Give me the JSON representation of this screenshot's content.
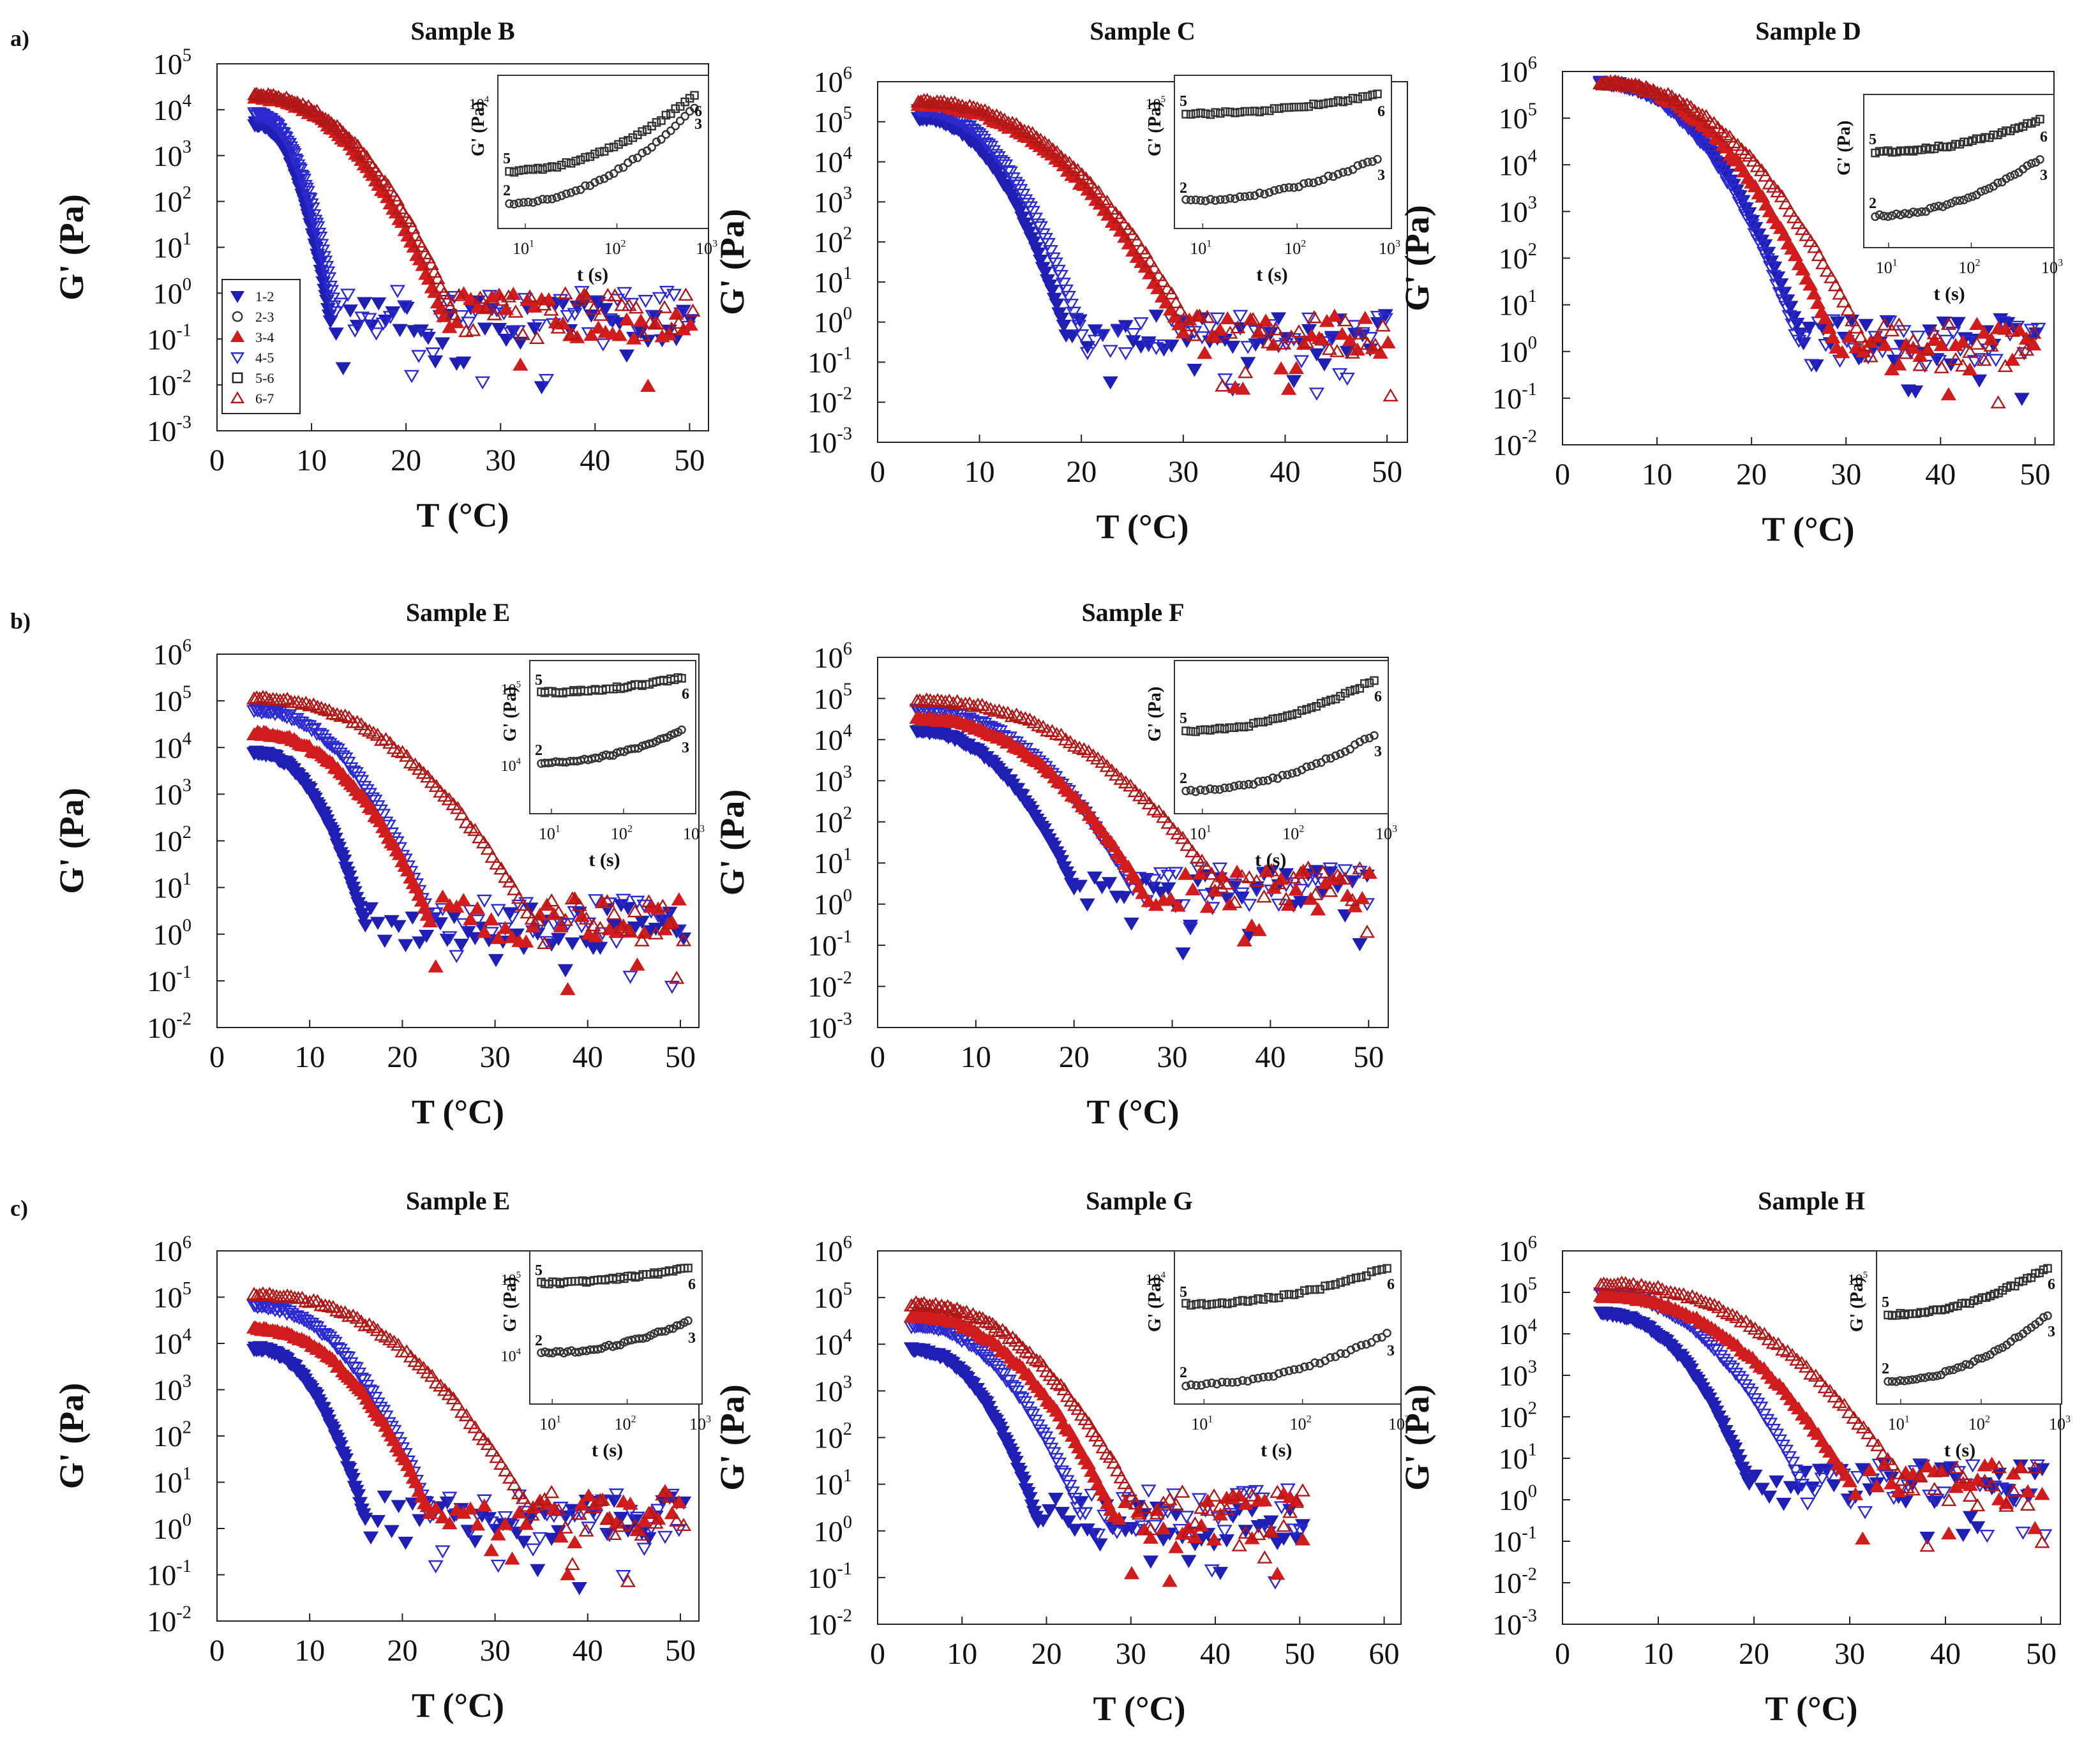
{
  "figure": {
    "row_labels": [
      "a)",
      "b)",
      "c)"
    ],
    "series_legend": [
      {
        "label": "1-2",
        "color": "#1f1fb4",
        "marker": "triangle-down",
        "fill": true
      },
      {
        "label": "2-3",
        "color": "#333333",
        "marker": "circle",
        "fill": false
      },
      {
        "label": "3-4",
        "color": "#d01c1c",
        "marker": "triangle-up",
        "fill": true
      },
      {
        "label": "4-5",
        "color": "#2a2ad0",
        "marker": "triangle-down",
        "fill": false
      },
      {
        "label": "5-6",
        "color": "#222222",
        "marker": "square",
        "fill": false
      },
      {
        "label": "6-7",
        "color": "#b01818",
        "marker": "triangle-up",
        "fill": false
      }
    ],
    "inset_labels": {
      "xlabel": "t (s)",
      "ylabel": "G' (Pa)",
      "curve_start_upper": "5",
      "curve_start_lower": "2",
      "curve_end_upper": "6",
      "curve_end_lower": "3"
    }
  },
  "chart_data": [
    {
      "type": "scatter",
      "title": "Sample B",
      "xlabel": "T (°C)",
      "ylabel": "G' (Pa)",
      "xlim": [
        0,
        52
      ],
      "xticks": [
        0,
        10,
        20,
        30,
        40,
        50
      ],
      "ylim_exp": [
        -3,
        5
      ],
      "ytick_labels": [
        "10-3",
        "10-2",
        "10-1",
        "100",
        "101",
        "102",
        "103",
        "104",
        "105"
      ],
      "curves": [
        {
          "series": "1-2",
          "T_start": 4,
          "logG_start": 3.7,
          "T_drop": 12,
          "logG_plateau": -0.6
        },
        {
          "series": "4-5",
          "T_start": 4,
          "logG_start": 3.9,
          "T_drop": 12.5,
          "logG_plateau": -0.4
        },
        {
          "series": "3-4",
          "T_start": 4,
          "logG_start": 4.25,
          "T_drop": 24,
          "logG_plateau": -0.5
        },
        {
          "series": "6-7",
          "T_start": 4,
          "logG_start": 4.3,
          "T_drop": 25,
          "logG_plateau": -0.5
        }
      ],
      "legend": true,
      "inset": {
        "xticks": [
          "101",
          "102",
          "103"
        ],
        "yticks": [
          "104"
        ],
        "upper_start": 0.35,
        "upper_end": 0.95,
        "lower_start": 0.1,
        "lower_end": 0.85
      }
    },
    {
      "type": "scatter",
      "title": "Sample C",
      "xlabel": "T (°C)",
      "ylabel": "G' (Pa)",
      "xlim": [
        0,
        52
      ],
      "xticks": [
        0,
        10,
        20,
        30,
        40,
        50
      ],
      "ylim_exp": [
        -3,
        6
      ],
      "ytick_labels": [
        "10-3",
        "10-2",
        "10-1",
        "100",
        "101",
        "102",
        "103",
        "104",
        "105",
        "106"
      ],
      "curves": [
        {
          "series": "1-2",
          "T_start": 4,
          "logG_start": 5.1,
          "T_drop": 18.5,
          "logG_plateau": -0.3
        },
        {
          "series": "4-5",
          "T_start": 4,
          "logG_start": 5.3,
          "T_drop": 20,
          "logG_plateau": -0.3
        },
        {
          "series": "3-4",
          "T_start": 4,
          "logG_start": 5.4,
          "T_drop": 30,
          "logG_plateau": -0.3
        },
        {
          "series": "6-7",
          "T_start": 4,
          "logG_start": 5.5,
          "T_drop": 31,
          "logG_plateau": -0.3
        }
      ],
      "legend": false,
      "inset": {
        "xticks": [
          "101",
          "102",
          "103"
        ],
        "yticks": [
          "105"
        ],
        "upper_start": 0.8,
        "upper_end": 0.95,
        "lower_start": 0.12,
        "lower_end": 0.45
      }
    },
    {
      "type": "scatter",
      "title": "Sample D",
      "xlabel": "T (°C)",
      "ylabel": "G' (Pa)",
      "xlim": [
        0,
        52
      ],
      "xticks": [
        0,
        10,
        20,
        30,
        40,
        50
      ],
      "ylim_exp": [
        -2,
        6
      ],
      "ytick_labels": [
        "10-2",
        "10-1",
        "100",
        "101",
        "102",
        "103",
        "104",
        "105",
        "106"
      ],
      "curves": [
        {
          "series": "1-2",
          "T_start": 4,
          "logG_start": 5.75,
          "T_drop": 25.5,
          "logG_plateau": 0.2
        },
        {
          "series": "4-5",
          "T_start": 4,
          "logG_start": 5.75,
          "T_drop": 25,
          "logG_plateau": 0.2
        },
        {
          "series": "3-4",
          "T_start": 4,
          "logG_start": 5.75,
          "T_drop": 29,
          "logG_plateau": 0.1
        },
        {
          "series": "6-7",
          "T_start": 4,
          "logG_start": 5.75,
          "T_drop": 32,
          "logG_plateau": 0.1
        }
      ],
      "legend": false,
      "inset": {
        "xticks": [
          "101",
          "102",
          "103"
        ],
        "yticks": [],
        "upper_start": 0.65,
        "upper_end": 0.9,
        "lower_start": 0.15,
        "lower_end": 0.6
      }
    },
    {
      "type": "scatter",
      "title": "Sample E",
      "xlabel": "T (°C)",
      "ylabel": "G' (Pa)",
      "xlim": [
        0,
        52
      ],
      "xticks": [
        0,
        10,
        20,
        30,
        40,
        50
      ],
      "ylim_exp": [
        -2,
        6
      ],
      "ytick_labels": [
        "10-2",
        "10-1",
        "100",
        "101",
        "102",
        "103",
        "104",
        "105",
        "106"
      ],
      "curves": [
        {
          "series": "1-2",
          "T_start": 4,
          "logG_start": 3.9,
          "T_drop": 16,
          "logG_plateau": 0.2
        },
        {
          "series": "4-5",
          "T_start": 4,
          "logG_start": 4.8,
          "T_drop": 23,
          "logG_plateau": 0.3
        },
        {
          "series": "3-4",
          "T_start": 4,
          "logG_start": 4.3,
          "T_drop": 23,
          "logG_plateau": 0.3
        },
        {
          "series": "6-7",
          "T_start": 4,
          "logG_start": 5.05,
          "T_drop": 34,
          "logG_plateau": 0.3
        }
      ],
      "legend": false,
      "inset": {
        "xticks": [
          "101",
          "102",
          "103"
        ],
        "yticks": [
          "105",
          "104"
        ],
        "upper_start": 0.85,
        "upper_end": 0.97,
        "lower_start": 0.3,
        "lower_end": 0.55
      }
    },
    {
      "type": "scatter",
      "title": "Sample F",
      "xlabel": "T (°C)",
      "ylabel": "G' (Pa)",
      "xlim": [
        0,
        52
      ],
      "xticks": [
        0,
        10,
        20,
        30,
        40,
        50
      ],
      "ylim_exp": [
        -3,
        6
      ],
      "ytick_labels": [
        "10-3",
        "10-2",
        "10-1",
        "100",
        "101",
        "102",
        "103",
        "104",
        "105",
        "106"
      ],
      "curves": [
        {
          "series": "1-2",
          "T_start": 4,
          "logG_start": 4.2,
          "T_drop": 20,
          "logG_plateau": 0.4
        },
        {
          "series": "4-5",
          "T_start": 4,
          "logG_start": 4.7,
          "T_drop": 26,
          "logG_plateau": 0.4
        },
        {
          "series": "3-4",
          "T_start": 4,
          "logG_start": 4.5,
          "T_drop": 27,
          "logG_plateau": 0.3
        },
        {
          "series": "6-7",
          "T_start": 4,
          "logG_start": 4.95,
          "T_drop": 35,
          "logG_plateau": 0.4
        }
      ],
      "legend": false,
      "inset": {
        "xticks": [
          "101",
          "102",
          "103"
        ],
        "yticks": [],
        "upper_start": 0.55,
        "upper_end": 0.95,
        "lower_start": 0.08,
        "lower_end": 0.52
      }
    },
    {
      "type": "scatter",
      "title": "Sample E",
      "xlabel": "T (°C)",
      "ylabel": "G' (Pa)",
      "xlim": [
        0,
        52
      ],
      "xticks": [
        0,
        10,
        20,
        30,
        40,
        50
      ],
      "ylim_exp": [
        -2,
        6
      ],
      "ytick_labels": [
        "10-2",
        "10-1",
        "100",
        "101",
        "102",
        "103",
        "104",
        "105",
        "106"
      ],
      "curves": [
        {
          "series": "1-2",
          "T_start": 4,
          "logG_start": 3.9,
          "T_drop": 16,
          "logG_plateau": 0.2
        },
        {
          "series": "4-5",
          "T_start": 4,
          "logG_start": 4.8,
          "T_drop": 23,
          "logG_plateau": 0.3
        },
        {
          "series": "3-4",
          "T_start": 4,
          "logG_start": 4.3,
          "T_drop": 23,
          "logG_plateau": 0.3
        },
        {
          "series": "6-7",
          "T_start": 4,
          "logG_start": 5.05,
          "T_drop": 34,
          "logG_plateau": 0.3
        }
      ],
      "legend": false,
      "inset": {
        "xticks": [
          "101",
          "102",
          "103"
        ],
        "yticks": [
          "105",
          "104"
        ],
        "upper_start": 0.85,
        "upper_end": 0.97,
        "lower_start": 0.3,
        "lower_end": 0.55
      }
    },
    {
      "type": "scatter",
      "title": "Sample G",
      "xlabel": "T (°C)",
      "ylabel": "G' (Pa)",
      "xlim": [
        0,
        62
      ],
      "xticks": [
        0,
        10,
        20,
        30,
        40,
        50,
        60
      ],
      "ylim_exp": [
        -2,
        6
      ],
      "ytick_labels": [
        "10-2",
        "10-1",
        "100",
        "101",
        "102",
        "103",
        "104",
        "105",
        "106"
      ],
      "curves": [
        {
          "series": "1-2",
          "T_start": 4,
          "logG_start": 3.9,
          "T_drop": 19,
          "logG_plateau": 0.2
        },
        {
          "series": "4-5",
          "T_start": 4,
          "logG_start": 4.4,
          "T_drop": 24,
          "logG_plateau": 0.4
        },
        {
          "series": "3-4",
          "T_start": 4,
          "logG_start": 4.6,
          "T_drop": 28,
          "logG_plateau": 0.3
        },
        {
          "series": "6-7",
          "T_start": 4,
          "logG_start": 4.85,
          "T_drop": 31,
          "logG_plateau": 0.4
        }
      ],
      "legend": false,
      "inset": {
        "xticks": [
          "101",
          "102",
          "103"
        ],
        "yticks": [
          "104"
        ],
        "upper_start": 0.68,
        "upper_end": 0.97,
        "lower_start": 0.05,
        "lower_end": 0.45
      }
    },
    {
      "type": "scatter",
      "title": "Sample H",
      "xlabel": "T (°C)",
      "ylabel": "G' (Pa)",
      "xlim": [
        0,
        52
      ],
      "xticks": [
        0,
        10,
        20,
        30,
        40,
        50
      ],
      "ylim_exp": [
        -3,
        6
      ],
      "ytick_labels": [
        "10-3",
        "10-2",
        "10-1",
        "100",
        "101",
        "102",
        "103",
        "104",
        "105",
        "106"
      ],
      "curves": [
        {
          "series": "1-2",
          "T_start": 4,
          "logG_start": 4.5,
          "T_drop": 19.5,
          "logG_plateau": 0.4
        },
        {
          "series": "4-5",
          "T_start": 4,
          "logG_start": 4.95,
          "T_drop": 25,
          "logG_plateau": 0.4
        },
        {
          "series": "3-4",
          "T_start": 4,
          "logG_start": 4.9,
          "T_drop": 30,
          "logG_plateau": 0.4
        },
        {
          "series": "6-7",
          "T_start": 4,
          "logG_start": 5.2,
          "T_drop": 36,
          "logG_plateau": 0.3
        }
      ],
      "legend": false,
      "inset": {
        "xticks": [
          "101",
          "102",
          "103"
        ],
        "yticks": [
          "105"
        ],
        "upper_start": 0.6,
        "upper_end": 0.97,
        "lower_start": 0.08,
        "lower_end": 0.6
      }
    }
  ]
}
